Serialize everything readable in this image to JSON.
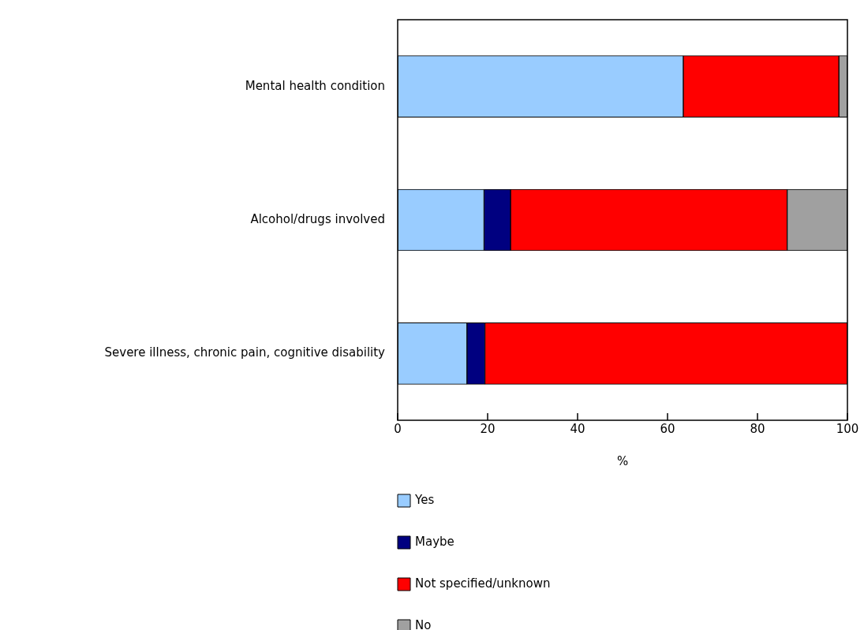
{
  "chart_data": {
    "type": "bar",
    "orientation": "horizontal",
    "stacked": true,
    "xlabel": "%",
    "categories": [
      "Mental health condition",
      "Alcohol/drugs involved",
      "Severe illness, chronic pain, cognitive disability"
    ],
    "series": [
      {
        "name": "Yes",
        "color": "#99ccff",
        "values": [
          63.5,
          19.2,
          15.4
        ]
      },
      {
        "name": "Maybe",
        "color": "#000080",
        "values": [
          0,
          5.9,
          4.0
        ]
      },
      {
        "name": "Not specified/unknown",
        "color": "#ff0000",
        "values": [
          34.6,
          61.5,
          80.6
        ]
      },
      {
        "name": "No",
        "color": "#a0a0a0",
        "values": [
          1.9,
          13.4,
          0
        ]
      }
    ],
    "xlim": [
      0,
      100
    ],
    "xticks": [
      0,
      20,
      40,
      60,
      80,
      100
    ],
    "grid": false,
    "legend": "bottom"
  }
}
